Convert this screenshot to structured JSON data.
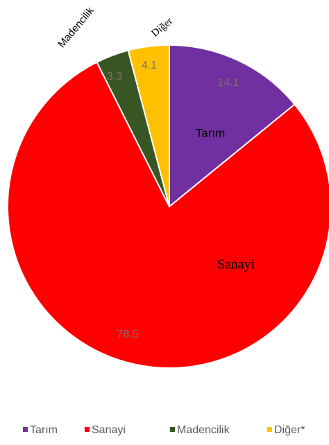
{
  "chart_data": {
    "type": "pie",
    "categories": [
      "Tarım",
      "Sanayi",
      "Madencilik",
      "Diğer*"
    ],
    "slice_labels": [
      "Tarım",
      "Sanayi",
      "Madencilik",
      "Diğer"
    ],
    "values": [
      14.1,
      78.5,
      3.3,
      4.1
    ],
    "colors": [
      "#7030a0",
      "#ff0000",
      "#375623",
      "#ffc000"
    ],
    "legend": "bottom"
  }
}
